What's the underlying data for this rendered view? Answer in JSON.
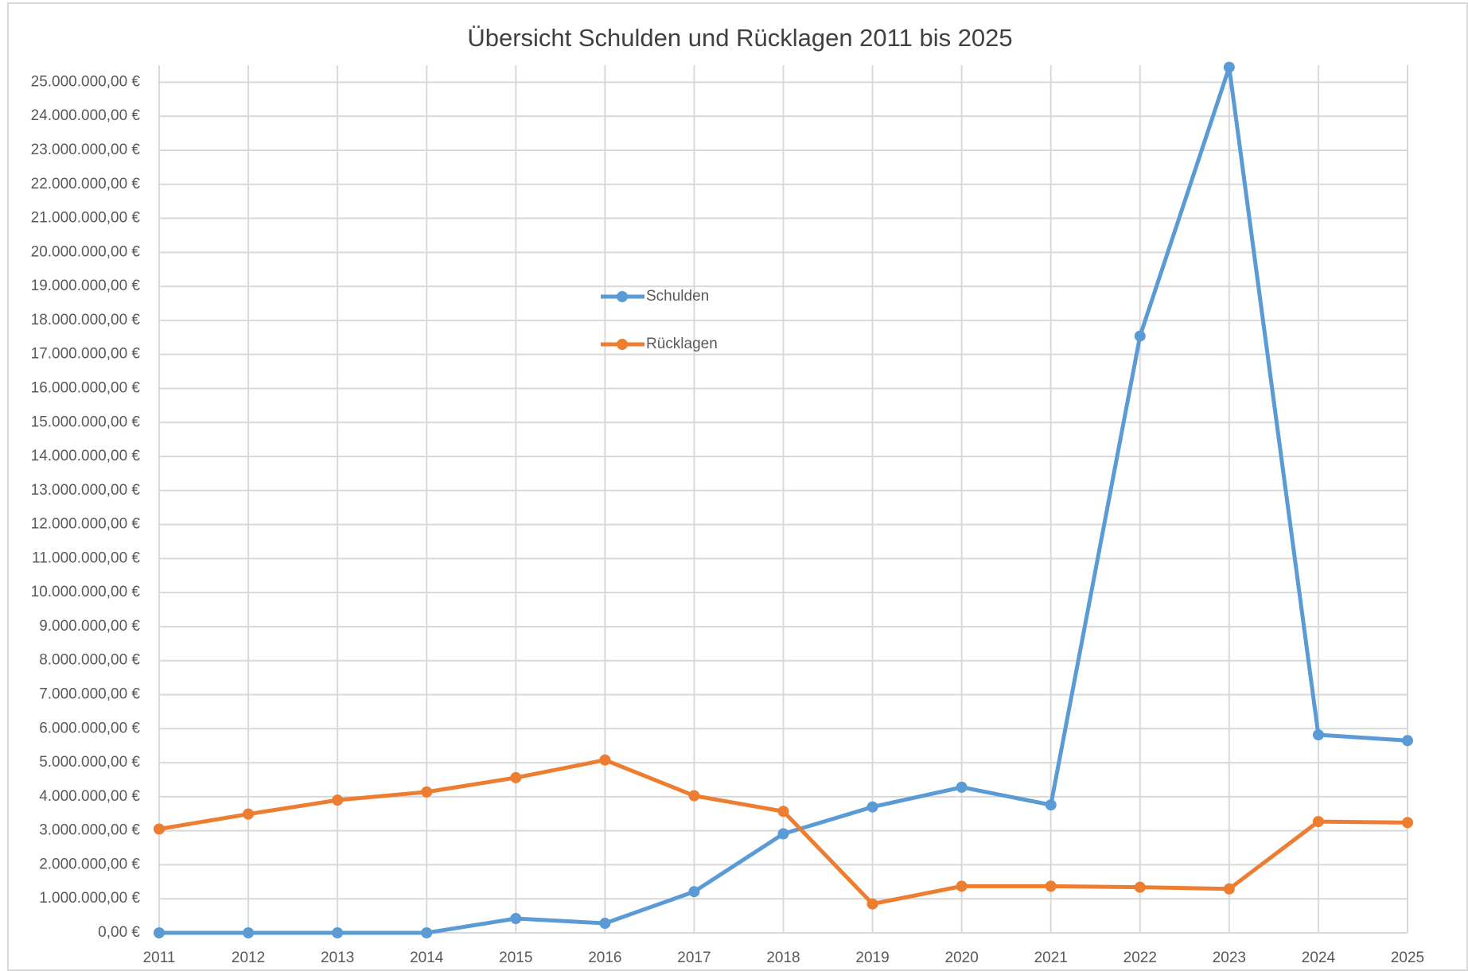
{
  "chart_data": {
    "type": "line",
    "title": "Übersicht Schulden und Rücklagen 2011 bis 2025",
    "categories": [
      "2011",
      "2012",
      "2013",
      "2014",
      "2015",
      "2016",
      "2017",
      "2018",
      "2019",
      "2020",
      "2021",
      "2022",
      "2023",
      "2024",
      "2025"
    ],
    "series": [
      {
        "name": "Schulden",
        "color": "#5b9bd5",
        "values": [
          0,
          0,
          0,
          0,
          420000,
          280000,
          1210000,
          2910000,
          3700000,
          4280000,
          3760000,
          17540000,
          25440000,
          5820000,
          5650000
        ]
      },
      {
        "name": "Rücklagen",
        "color": "#ed7d31",
        "values": [
          3050000,
          3490000,
          3900000,
          4140000,
          4560000,
          5080000,
          4030000,
          3570000,
          850000,
          1370000,
          1370000,
          1340000,
          1290000,
          3270000,
          3240000
        ]
      }
    ],
    "ylim": [
      0,
      25500000
    ],
    "yticks": [
      {
        "value": 0,
        "label": "0,00 €"
      },
      {
        "value": 1000000,
        "label": "1.000.000,00 €"
      },
      {
        "value": 2000000,
        "label": "2.000.000,00 €"
      },
      {
        "value": 3000000,
        "label": "3.000.000,00 €"
      },
      {
        "value": 4000000,
        "label": "4.000.000,00 €"
      },
      {
        "value": 5000000,
        "label": "5.000.000,00 €"
      },
      {
        "value": 6000000,
        "label": "6.000.000,00 €"
      },
      {
        "value": 7000000,
        "label": "7.000.000,00 €"
      },
      {
        "value": 8000000,
        "label": "8.000.000,00 €"
      },
      {
        "value": 9000000,
        "label": "9.000.000,00 €"
      },
      {
        "value": 10000000,
        "label": "10.000.000,00 €"
      },
      {
        "value": 11000000,
        "label": "11.000.000,00 €"
      },
      {
        "value": 12000000,
        "label": "12.000.000,00 €"
      },
      {
        "value": 13000000,
        "label": "13.000.000,00 €"
      },
      {
        "value": 14000000,
        "label": "14.000.000,00 €"
      },
      {
        "value": 15000000,
        "label": "15.000.000,00 €"
      },
      {
        "value": 16000000,
        "label": "16.000.000,00 €"
      },
      {
        "value": 17000000,
        "label": "17.000.000,00 €"
      },
      {
        "value": 18000000,
        "label": "18.000.000,00 €"
      },
      {
        "value": 19000000,
        "label": "19.000.000,00 €"
      },
      {
        "value": 20000000,
        "label": "20.000.000,00 €"
      },
      {
        "value": 21000000,
        "label": "21.000.000,00 €"
      },
      {
        "value": 22000000,
        "label": "22.000.000,00 €"
      },
      {
        "value": 23000000,
        "label": "23.000.000,00 €"
      },
      {
        "value": 24000000,
        "label": "24.000.000,00 €"
      },
      {
        "value": 25000000,
        "label": "25.000.000,00 €"
      }
    ],
    "grid": true
  }
}
